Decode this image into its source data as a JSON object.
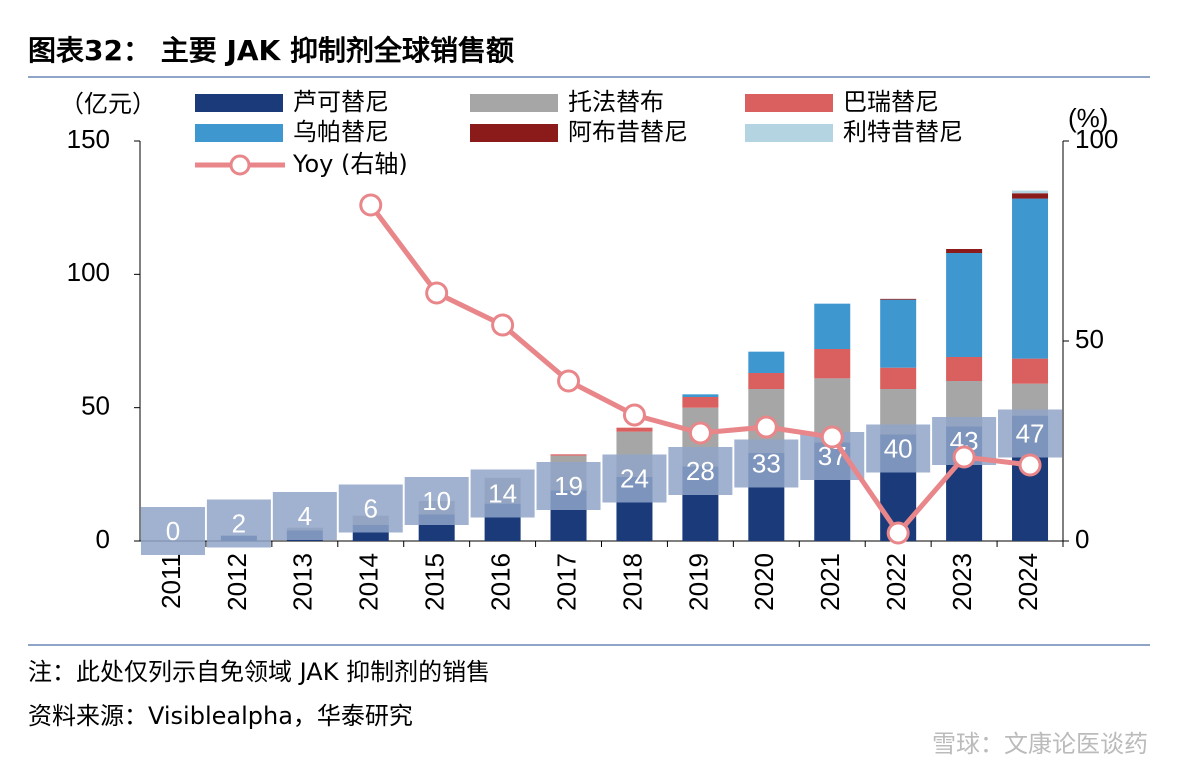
{
  "chart_data": {
    "type": "bar",
    "title": "图表32：  主要 JAK 抑制剂全球销售额",
    "y_label": "（亿元）",
    "y2_label": "(%)",
    "categories": [
      "2011",
      "2012",
      "2013",
      "2014",
      "2015",
      "2016",
      "2017",
      "2018",
      "2019",
      "2020",
      "2021",
      "2022",
      "2023",
      "2024"
    ],
    "series": [
      {
        "name": "芦可替尼",
        "color": "#1a3a7a",
        "values": [
          0,
          2,
          4,
          6,
          10,
          14,
          19,
          24,
          28,
          33,
          37,
          40,
          43,
          47
        ]
      },
      {
        "name": "托法替布",
        "color": "#a6a6a6",
        "values": [
          0,
          0,
          1,
          3.5,
          5,
          9.7,
          13,
          17,
          22,
          24,
          24,
          17,
          17,
          12
        ]
      },
      {
        "name": "巴瑞替尼",
        "color": "#d9605e",
        "values": [
          0,
          0,
          0,
          0,
          0,
          0,
          0.5,
          1.5,
          4,
          6,
          11,
          8,
          9,
          9.4
        ]
      },
      {
        "name": "乌帕替尼",
        "color": "#3f97d0",
        "values": [
          0,
          0,
          0,
          0,
          0,
          0,
          0,
          0,
          1,
          8,
          17,
          25.5,
          39,
          60
        ]
      },
      {
        "name": "阿布昔替尼",
        "color": "#8b1a1a",
        "values": [
          0,
          0,
          0,
          0,
          0,
          0,
          0,
          0,
          0,
          0,
          0,
          0.3,
          1.5,
          2
        ]
      },
      {
        "name": "利特昔替尼",
        "color": "#b3d4e0",
        "values": [
          0,
          0,
          0,
          0,
          0,
          0,
          0,
          0,
          0,
          0,
          0,
          0,
          0,
          1
        ]
      },
      {
        "name": "Yoy (右轴)",
        "color": "#e8868a",
        "axis": "y2",
        "type": "line",
        "values": [
          null,
          null,
          null,
          84,
          62,
          54,
          40,
          31.5,
          27,
          28.5,
          26,
          2,
          21,
          19
        ]
      }
    ],
    "ylim": [
      0,
      150
    ],
    "yticks": [
      0,
      50,
      100,
      150
    ],
    "y2lim": [
      0,
      100
    ],
    "y2ticks": [
      0,
      50,
      100
    ],
    "note": "注：此处仅列示自免领域 JAK 抑制剂的销售",
    "source": "资料来源：Visiblealpha，华泰研究",
    "watermark": "雪球：文康论医谈药"
  }
}
